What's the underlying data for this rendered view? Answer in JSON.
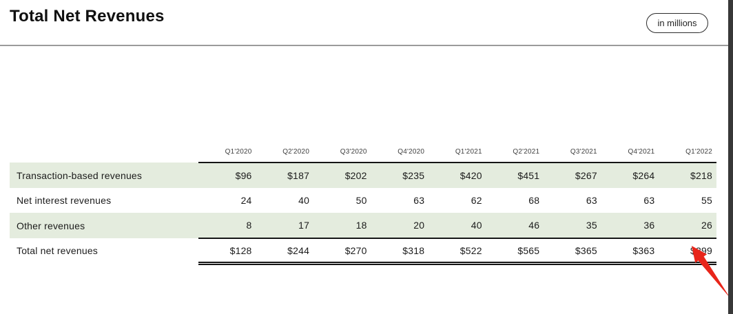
{
  "header": {
    "title": "Total Net Revenues",
    "unit_badge_label": "in millions"
  },
  "chart_data": {
    "type": "table",
    "title": "Total Net Revenues",
    "unit": "in millions",
    "categories": [
      "Q1'2020",
      "Q2'2020",
      "Q3'2020",
      "Q4'2020",
      "Q1'2021",
      "Q2'2021",
      "Q3'2021",
      "Q4'2021",
      "Q1'2022"
    ],
    "rows": [
      {
        "label": "Transaction-based revenues",
        "values": [
          "$96",
          "$187",
          "$202",
          "$235",
          "$420",
          "$451",
          "$267",
          "$264",
          "$218"
        ],
        "highlight": true,
        "is_total": false
      },
      {
        "label": "Net interest revenues",
        "values": [
          "24",
          "40",
          "50",
          "63",
          "62",
          "68",
          "63",
          "63",
          "55"
        ],
        "highlight": false,
        "is_total": false
      },
      {
        "label": "Other revenues",
        "values": [
          "8",
          "17",
          "18",
          "20",
          "40",
          "46",
          "35",
          "36",
          "26"
        ],
        "highlight": true,
        "is_total": false
      },
      {
        "label": "Total net revenues",
        "values": [
          "$128",
          "$244",
          "$270",
          "$318",
          "$522",
          "$565",
          "$365",
          "$363",
          "$299"
        ],
        "highlight": false,
        "is_total": true
      }
    ],
    "layout_hints": {
      "highlighted_row_color": "#e4ecde",
      "rules_span": "data-columns-only",
      "total_row_border": "double"
    }
  },
  "annotation": {
    "type": "arrow",
    "points_at": "$299",
    "color": "#e8251a"
  },
  "colors": {
    "row_highlight": "#e4ecde",
    "rule_dark": "#141414",
    "divider_gray": "#9b9b9b",
    "window_edge": "#383838"
  }
}
